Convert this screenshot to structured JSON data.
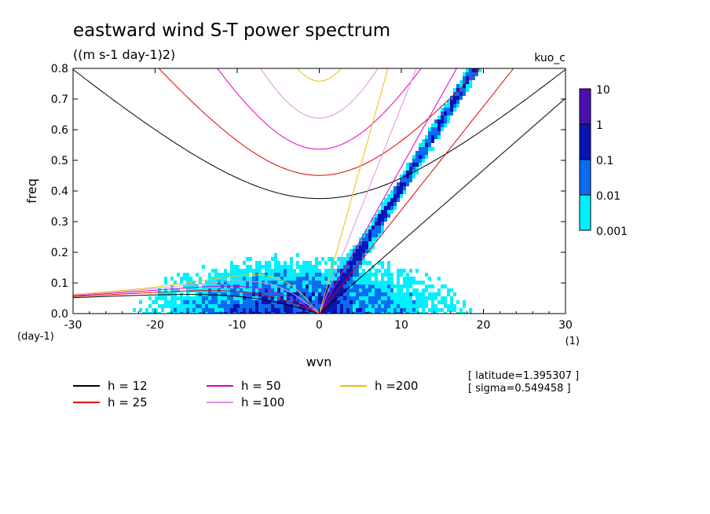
{
  "chart_data": {
    "type": "heatmap",
    "title": "eastward wind S-T power spectrum",
    "subtitle": "((m s-1 day-1)2)",
    "run_label": "kuo_c",
    "xlabel": "wvn",
    "ylabel": "freq",
    "x_unit_label": "(1)",
    "y_unit_label": "(day-1)",
    "xlim": [
      -30,
      30
    ],
    "ylim": [
      0,
      0.8
    ],
    "x_ticks": [
      -30,
      -20,
      -10,
      0,
      10,
      20,
      30
    ],
    "y_ticks": [
      0.0,
      0.1,
      0.2,
      0.3,
      0.4,
      0.5,
      0.6,
      0.7,
      0.8
    ],
    "x_tick_labels": [
      "-30",
      "-20",
      "-10",
      "0",
      "10",
      "20",
      "30"
    ],
    "y_tick_labels": [
      "0.0",
      "0.1",
      "0.2",
      "0.3",
      "0.4",
      "0.5",
      "0.6",
      "0.7",
      "0.8"
    ],
    "colorbar": {
      "levels": [
        "10",
        "1",
        "0.1",
        "0.01",
        "0.001"
      ],
      "colors": [
        "#4a10b0",
        "#0a14b4",
        "#0a6cf0",
        "#00f0ff"
      ]
    },
    "dispersion_curves": [
      {
        "name": "h = 12",
        "depth": 12,
        "color": "#000000"
      },
      {
        "name": "h = 25",
        "depth": 25,
        "color": "#e00000"
      },
      {
        "name": "h = 50",
        "depth": 50,
        "color": "#e000c0"
      },
      {
        "name": "h =100",
        "depth": 100,
        "color": "#e090e0"
      },
      {
        "name": "h =200",
        "depth": 200,
        "color": "#f0c000"
      }
    ],
    "latitude_note": "[ latitude=1.395307 ]",
    "sigma_note": "[ sigma=0.549458 ]"
  }
}
